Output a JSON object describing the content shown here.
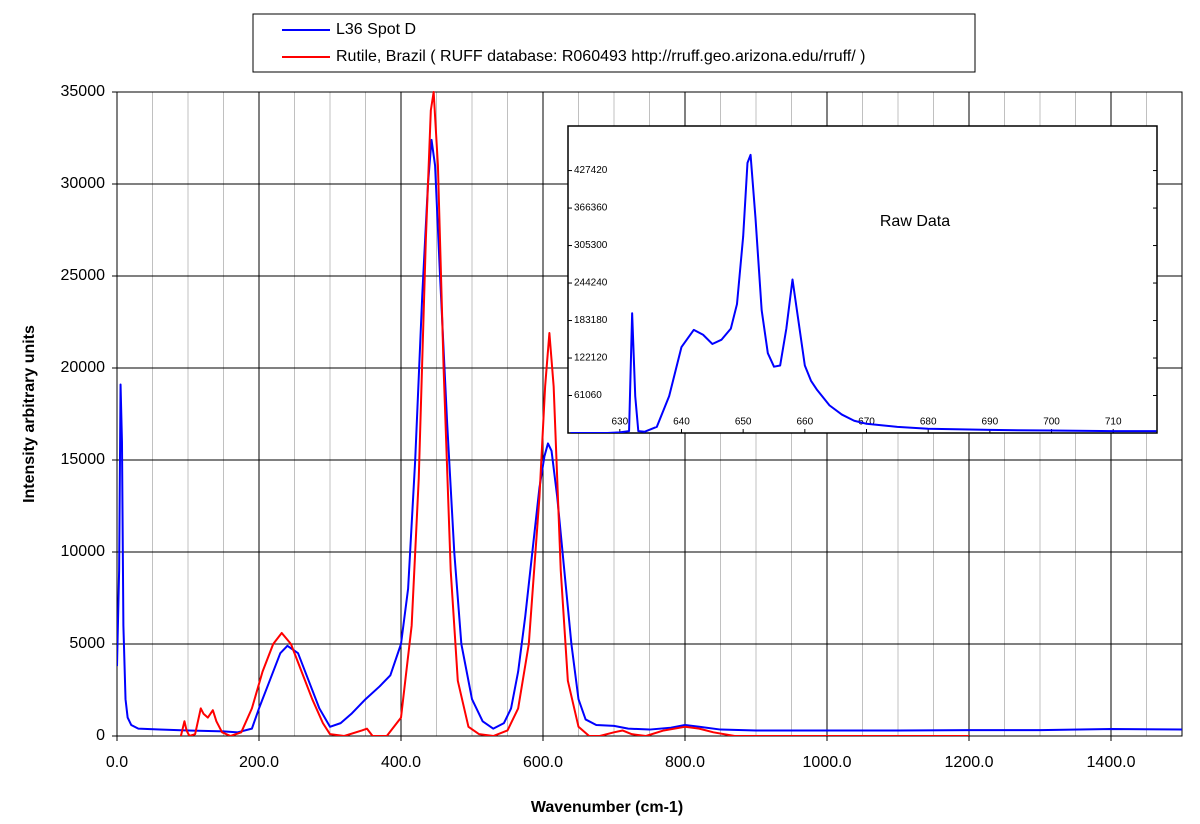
{
  "chart_data": [
    {
      "type": "line",
      "x_label": "Wavenumber (cm-1)",
      "y_label": "Intensity arbitrary units",
      "xlim": [
        0,
        1500
      ],
      "ylim": [
        0,
        35000
      ],
      "xticks": [
        {
          "value": 0,
          "label": "0.0"
        },
        {
          "value": 200,
          "label": "200.0"
        },
        {
          "value": 400,
          "label": "400.0"
        },
        {
          "value": 600,
          "label": "600.0"
        },
        {
          "value": 800,
          "label": "800.0"
        },
        {
          "value": 1000,
          "label": "1000.0"
        },
        {
          "value": 1200,
          "label": "1200.0"
        },
        {
          "value": 1400,
          "label": "1400.0"
        }
      ],
      "x_minor_grid": [
        50,
        100,
        150,
        250,
        300,
        350,
        450,
        500,
        550,
        650,
        700,
        750,
        850,
        900,
        950,
        1050,
        1100,
        1150,
        1250,
        1300,
        1350,
        1450,
        1500
      ],
      "yticks": [
        0,
        5000,
        10000,
        15000,
        20000,
        25000,
        30000,
        35000
      ],
      "grid": true,
      "legend": "top",
      "series": [
        {
          "name": "L36 Spot D",
          "color": "#0000ff",
          "x": [
            0,
            3,
            5,
            7,
            9,
            12,
            15,
            20,
            30,
            60,
            100,
            150,
            170,
            190,
            200,
            215,
            230,
            240,
            255,
            270,
            285,
            300,
            315,
            330,
            350,
            370,
            385,
            400,
            410,
            420,
            430,
            438,
            443,
            448,
            455,
            465,
            475,
            485,
            500,
            515,
            530,
            545,
            555,
            565,
            575,
            585,
            595,
            602,
            607,
            612,
            620,
            630,
            640,
            650,
            660,
            675,
            700,
            720,
            750,
            780,
            800,
            820,
            850,
            900,
            1000,
            1100,
            1200,
            1300,
            1400,
            1500
          ],
          "values": [
            3800,
            9000,
            19100,
            16000,
            6000,
            2000,
            1000,
            600,
            400,
            350,
            300,
            250,
            200,
            400,
            1500,
            3000,
            4500,
            4900,
            4500,
            3000,
            1500,
            500,
            700,
            1200,
            2000,
            2700,
            3300,
            5000,
            8000,
            15000,
            24000,
            30000,
            32400,
            31000,
            25000,
            17000,
            10000,
            5000,
            2000,
            800,
            400,
            700,
            1500,
            3500,
            6500,
            10000,
            13500,
            15200,
            15900,
            15500,
            13000,
            9000,
            5000,
            2000,
            900,
            600,
            550,
            400,
            350,
            450,
            600,
            500,
            350,
            300,
            300,
            300,
            320,
            320,
            380,
            350
          ]
        },
        {
          "name": "Rutile, Brazil ( RUFF database: R060493  http://rruff.geo.arizona.edu/rruff/ )",
          "color": "#ff0000",
          "x": [
            90,
            95,
            98,
            102,
            110,
            118,
            122,
            128,
            135,
            140,
            148,
            160,
            175,
            190,
            205,
            220,
            232,
            245,
            260,
            275,
            290,
            300,
            320,
            345,
            352,
            360,
            380,
            400,
            415,
            425,
            435,
            442,
            446,
            452,
            460,
            470,
            480,
            495,
            510,
            530,
            550,
            565,
            580,
            595,
            603,
            609,
            615,
            625,
            635,
            650,
            665,
            680,
            700,
            712,
            725,
            745,
            770,
            800,
            820,
            840,
            870,
            950,
            1100,
            1200
          ],
          "values": [
            0,
            800,
            300,
            0,
            100,
            1500,
            1200,
            1000,
            1400,
            800,
            200,
            0,
            200,
            1500,
            3500,
            5000,
            5600,
            5000,
            3500,
            2000,
            700,
            100,
            0,
            300,
            400,
            0,
            0,
            1000,
            6000,
            14000,
            27000,
            34000,
            35000,
            31000,
            20000,
            9000,
            3000,
            500,
            100,
            0,
            300,
            1500,
            5000,
            13000,
            19000,
            21900,
            19000,
            9000,
            3000,
            500,
            0,
            0,
            200,
            300,
            100,
            0,
            300,
            500,
            400,
            200,
            0,
            0,
            0,
            0
          ]
        }
      ]
    },
    {
      "type": "line",
      "annotation": "Raw Data",
      "xlim": [
        621.6,
        717.1
      ],
      "ylim": [
        0,
        500000
      ],
      "xticks": [
        630,
        640,
        650,
        660,
        670,
        680,
        690,
        700,
        710
      ],
      "yticks": [
        61060,
        122120,
        183180,
        244240,
        305300,
        366360,
        427420
      ],
      "grid": false,
      "series": [
        {
          "color": "#0000ff",
          "x": [
            622,
            625,
            628,
            630,
            631.5,
            632,
            632.5,
            633,
            634,
            636,
            638,
            640,
            642,
            643.5,
            645,
            646.5,
            648,
            649,
            650,
            650.7,
            651.2,
            652,
            653,
            654,
            655,
            656,
            657,
            658,
            659,
            660,
            661,
            662,
            664,
            666,
            668,
            670,
            675,
            680,
            690,
            700,
            710,
            717
          ],
          "values": [
            0,
            0,
            0,
            1000,
            3000,
            195000,
            60000,
            3000,
            2000,
            10000,
            60000,
            140000,
            168000,
            160000,
            145000,
            152000,
            170000,
            210000,
            320000,
            440000,
            453000,
            350000,
            200000,
            130000,
            108000,
            110000,
            170000,
            250000,
            180000,
            110000,
            85000,
            70000,
            45000,
            30000,
            20000,
            15000,
            10000,
            7000,
            5000,
            4000,
            3000,
            3000
          ]
        }
      ]
    }
  ]
}
